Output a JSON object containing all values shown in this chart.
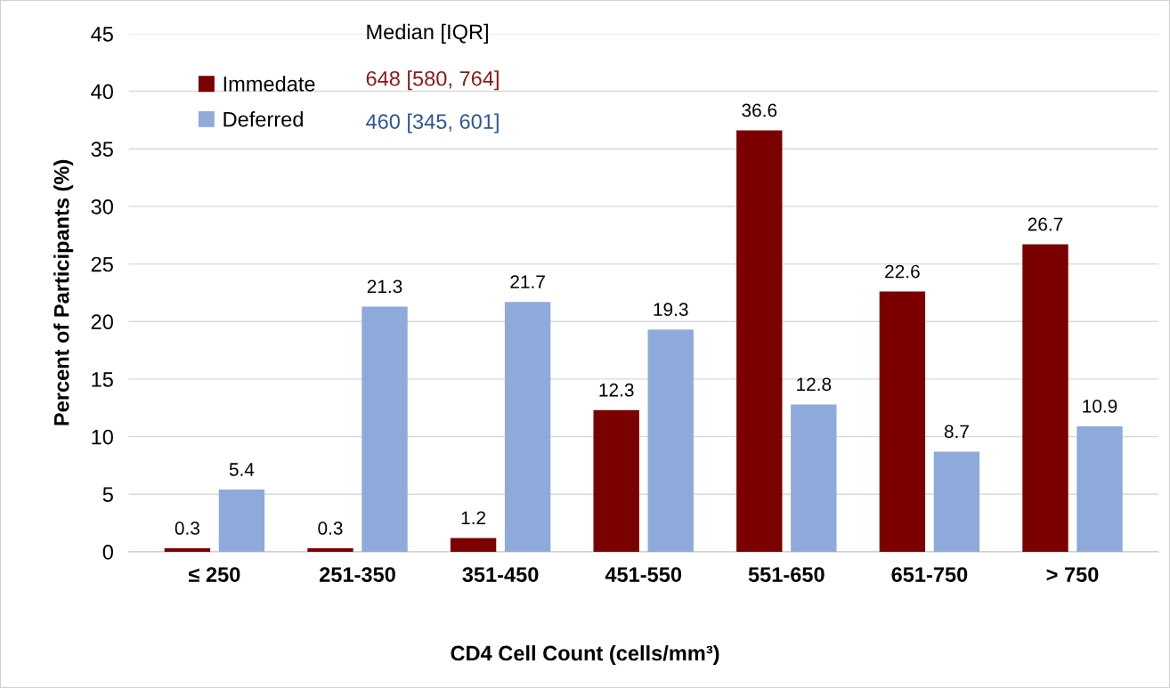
{
  "chart_data": {
    "type": "bar",
    "categories": [
      "≤ 250",
      "251-350",
      "351-450",
      "451-550",
      "551-650",
      "651-750",
      "> 750"
    ],
    "series": [
      {
        "name": "Immedate",
        "color": "#7b0000",
        "values": [
          0.3,
          0.3,
          1.2,
          12.3,
          36.6,
          22.6,
          26.7
        ]
      },
      {
        "name": "Deferred",
        "color": "#8eaadb",
        "values": [
          5.4,
          21.3,
          21.7,
          19.3,
          12.8,
          8.7,
          10.9
        ]
      }
    ],
    "xlabel": "CD4 Cell Count (cells/mm³)",
    "ylabel": "Percent of Participants (%)",
    "legend_title": "Median [IQR]",
    "annotations": [
      "648 [580, 764]",
      "460 [345, 601]"
    ],
    "ylim": [
      0,
      45
    ],
    "yticks": [
      0,
      5,
      10,
      15,
      20,
      25,
      30,
      35,
      40,
      45
    ],
    "grid": "y",
    "legend": "top left",
    "data_labels": true
  }
}
